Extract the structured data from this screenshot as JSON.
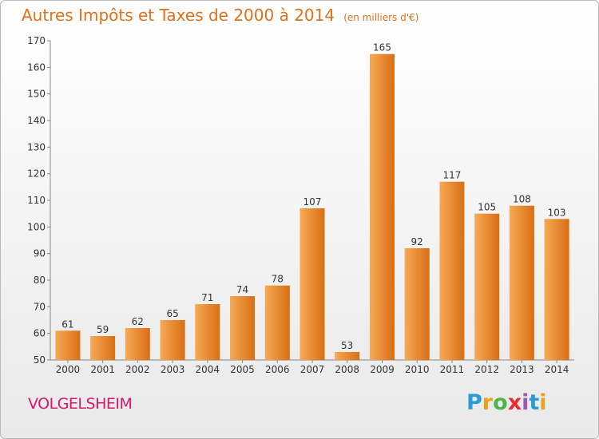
{
  "title": "Autres Impôts et Taxes de 2000 à 2014",
  "unit": "(en milliers d'€)",
  "location": "VOLGELSHEIM",
  "brand": {
    "letters": [
      "P",
      "r",
      "o",
      "x",
      "i",
      "t",
      "i"
    ],
    "colors": [
      "#2a9bd6",
      "#e8a21c",
      "#4db848",
      "#e62f2f",
      "#9b59b6",
      "#2a9bd6",
      "#e8a21c"
    ]
  },
  "colors": {
    "bar": "#f08c2a",
    "bar_light": "#f6aa55",
    "bar_dark": "#d96e14",
    "title": "#e0701a",
    "city": "#d6196e"
  },
  "chart_data": {
    "type": "bar",
    "categories": [
      "2000",
      "2001",
      "2002",
      "2003",
      "2004",
      "2005",
      "2006",
      "2007",
      "2008",
      "2009",
      "2010",
      "2011",
      "2012",
      "2013",
      "2014"
    ],
    "values": [
      61,
      59,
      62,
      65,
      71,
      74,
      78,
      107,
      53,
      165,
      92,
      117,
      105,
      108,
      103
    ],
    "ylim": [
      50,
      170
    ],
    "yticks": [
      50,
      60,
      70,
      80,
      90,
      100,
      110,
      120,
      130,
      140,
      150,
      160,
      170
    ],
    "grid": false
  }
}
